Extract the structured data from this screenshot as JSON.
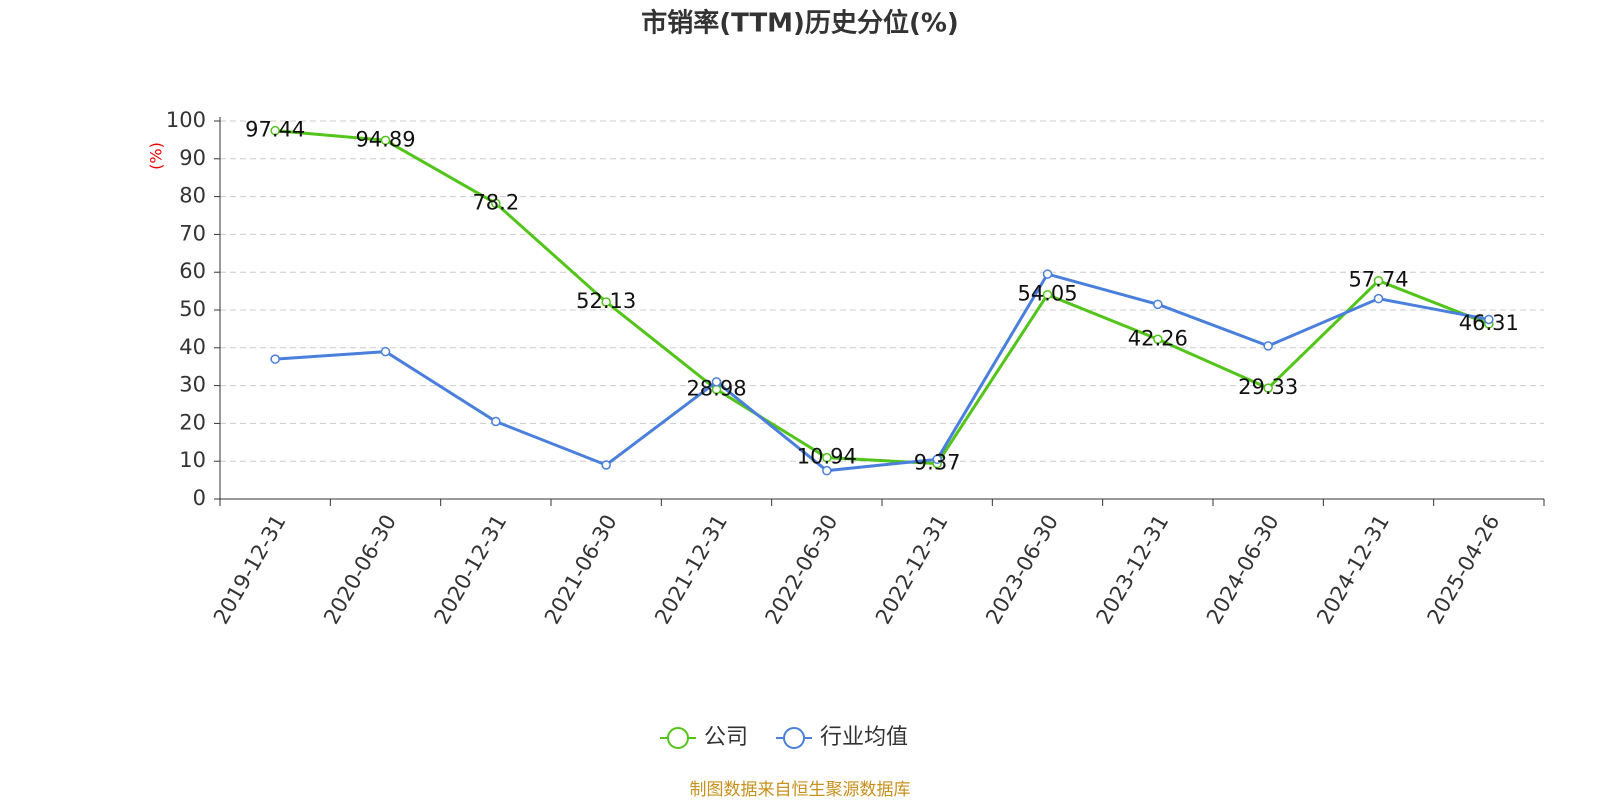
{
  "chart_data": {
    "type": "line",
    "title": "市销率(TTM)历史分位(%)",
    "y_label": "(%)",
    "categories": [
      "2019-12-31",
      "2020-06-30",
      "2020-12-31",
      "2021-06-30",
      "2021-12-31",
      "2022-06-30",
      "2022-12-31",
      "2023-06-30",
      "2023-12-31",
      "2024-06-30",
      "2024-12-31",
      "2025-04-26"
    ],
    "series": [
      {
        "name": "公司",
        "color": "#52c41a",
        "values": [
          97.44,
          94.89,
          78.2,
          52.13,
          28.98,
          10.94,
          9.37,
          54.05,
          42.26,
          29.33,
          57.74,
          46.31
        ],
        "show_labels": true
      },
      {
        "name": "行业均值",
        "color": "#4a7fdc",
        "values": [
          37,
          39,
          20.5,
          9,
          31,
          7.5,
          10.5,
          59.5,
          51.5,
          40.5,
          53,
          47.5
        ],
        "show_labels": false
      }
    ],
    "ylim": [
      0,
      100
    ],
    "yticks": [
      0,
      10,
      20,
      30,
      40,
      50,
      60,
      70,
      80,
      90,
      100
    ],
    "grid": true,
    "source": "制图数据来自恒生聚源数据库"
  }
}
